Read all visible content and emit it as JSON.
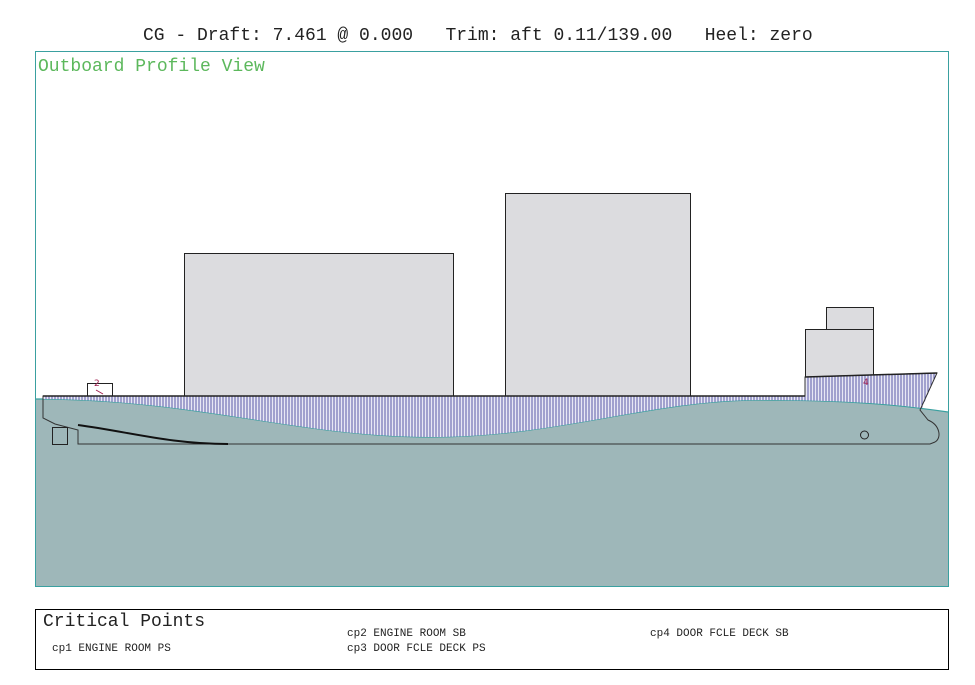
{
  "header": {
    "status": "CG - Draft: 7.461 @ 0.000   Trim: aft 0.11/139.00   Heel: zero"
  },
  "view": {
    "label": "Outboard Profile View",
    "markers": [
      "2",
      "4"
    ]
  },
  "critical_points": {
    "title": "Critical Points",
    "items": [
      "cp1 ENGINE ROOM PS",
      "cp2 ENGINE ROOM SB",
      "cp3 DOOR FCLE DECK PS",
      "cp4 DOOR FCLE DECK SB"
    ]
  }
}
